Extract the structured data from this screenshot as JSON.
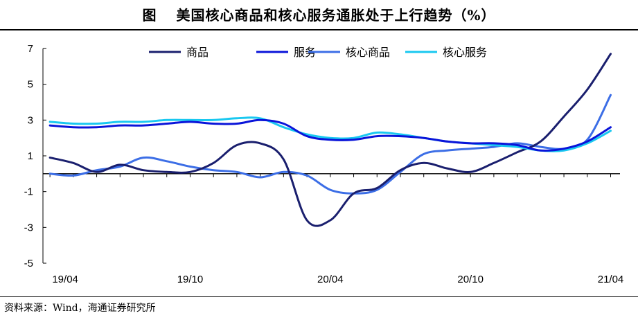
{
  "title": {
    "fig_label": "图",
    "text": "美国核心商品和核心服务通胀处于上行趋势（%）"
  },
  "source": "资料来源：Wind，海通证券研究所",
  "chart_data": {
    "type": "line",
    "title": "",
    "xlabel": "",
    "ylabel": "",
    "ylim": [
      -5,
      7
    ],
    "yticks": [
      -5,
      -3,
      -1,
      1,
      3,
      5,
      7
    ],
    "x": [
      "2019-04",
      "2019-05",
      "2019-06",
      "2019-07",
      "2019-08",
      "2019-09",
      "2019-10",
      "2019-11",
      "2019-12",
      "2020-01",
      "2020-02",
      "2020-03",
      "2020-04",
      "2020-05",
      "2020-06",
      "2020-07",
      "2020-08",
      "2020-09",
      "2020-10",
      "2020-11",
      "2020-12",
      "2021-01",
      "2021-02",
      "2021-03",
      "2021-04"
    ],
    "xtick_labels": [
      {
        "x": "2019-04",
        "label": "19/04"
      },
      {
        "x": "2019-10",
        "label": "19/10"
      },
      {
        "x": "2020-04",
        "label": "20/04"
      },
      {
        "x": "2020-10",
        "label": "20/10"
      },
      {
        "x": "2021-04",
        "label": "21/04"
      }
    ],
    "legend_position": "top",
    "grid": false,
    "series": [
      {
        "name": "商品",
        "color": "#1a1f6e",
        "values": [
          0.9,
          0.6,
          0.1,
          0.5,
          0.2,
          0.1,
          0.1,
          0.6,
          1.6,
          1.7,
          0.8,
          -2.6,
          -2.6,
          -1.1,
          -0.8,
          0.2,
          0.6,
          0.3,
          0.1,
          0.6,
          1.2,
          1.8,
          3.2,
          4.7,
          6.7
        ]
      },
      {
        "name": "服务",
        "color": "#0a14d9",
        "values": [
          2.7,
          2.6,
          2.6,
          2.7,
          2.7,
          2.8,
          2.9,
          2.8,
          2.8,
          3.0,
          2.8,
          2.1,
          1.9,
          1.9,
          2.1,
          2.1,
          2.0,
          1.8,
          1.7,
          1.7,
          1.6,
          1.3,
          1.4,
          1.8,
          2.6
        ]
      },
      {
        "name": "核心商品",
        "color": "#3c6ee6",
        "values": [
          0.0,
          -0.1,
          0.2,
          0.4,
          0.9,
          0.7,
          0.4,
          0.2,
          0.1,
          -0.2,
          0.1,
          -0.1,
          -0.9,
          -1.1,
          -0.9,
          0.1,
          1.1,
          1.3,
          1.4,
          1.5,
          1.7,
          1.5,
          1.4,
          1.9,
          4.4
        ]
      },
      {
        "name": "核心服务",
        "color": "#19c8f0",
        "values": [
          2.9,
          2.8,
          2.8,
          2.9,
          2.9,
          3.0,
          3.0,
          3.0,
          3.1,
          3.1,
          2.6,
          2.2,
          2.0,
          2.0,
          2.3,
          2.2,
          2.0,
          1.8,
          1.7,
          1.6,
          1.5,
          1.3,
          1.3,
          1.7,
          2.4
        ]
      }
    ]
  }
}
